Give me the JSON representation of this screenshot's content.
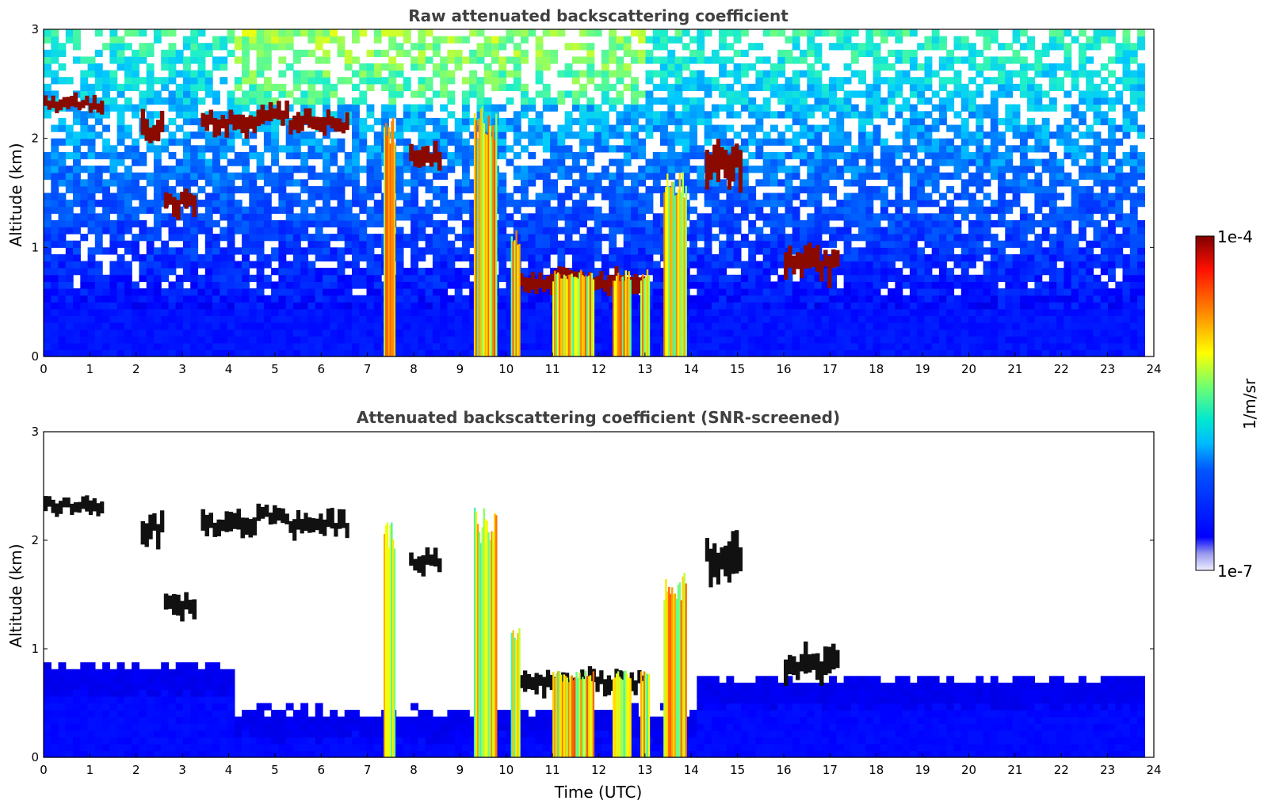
{
  "chart_data": [
    {
      "type": "heatmap",
      "title": "Raw attenuated backscattering coefficient",
      "ylabel": "Altitude (km)",
      "xlabel": "",
      "xlim": [
        0,
        24
      ],
      "ylim": [
        0,
        3
      ],
      "xticks": [
        "0",
        "1",
        "2",
        "3",
        "4",
        "5",
        "6",
        "7",
        "8",
        "9",
        "10",
        "11",
        "12",
        "13",
        "14",
        "15",
        "16",
        "17",
        "18",
        "19",
        "20",
        "21",
        "22",
        "23",
        "24"
      ],
      "yticks": [
        "0",
        "1",
        "2",
        "3"
      ],
      "data_extent_hours": 23.8,
      "colorscale": "jet",
      "color_min": "1e-7",
      "color_max": "1e-4",
      "features": {
        "cloud_layers": [
          {
            "t0": 0.0,
            "t1": 1.3,
            "z": 2.32,
            "thick": 0.15
          },
          {
            "t0": 2.1,
            "t1": 2.6,
            "z": 2.1,
            "thick": 0.25
          },
          {
            "t0": 2.6,
            "t1": 3.3,
            "z": 1.4,
            "thick": 0.2
          },
          {
            "t0": 3.4,
            "t1": 4.6,
            "z": 2.15,
            "thick": 0.2
          },
          {
            "t0": 4.6,
            "t1": 5.3,
            "z": 2.23,
            "thick": 0.18
          },
          {
            "t0": 5.3,
            "t1": 6.6,
            "z": 2.15,
            "thick": 0.2
          },
          {
            "t0": 7.9,
            "t1": 8.6,
            "z": 1.82,
            "thick": 0.2
          },
          {
            "t0": 10.2,
            "t1": 13.0,
            "z": 0.7,
            "thick": 0.2
          },
          {
            "t0": 14.3,
            "t1": 15.1,
            "z": 1.8,
            "thick": 0.4
          },
          {
            "t0": 16.0,
            "t1": 17.2,
            "z": 0.85,
            "thick": 0.3
          }
        ],
        "precip_columns": [
          {
            "t0": 7.35,
            "t1": 7.6,
            "top": 2.2
          },
          {
            "t0": 9.3,
            "t1": 9.8,
            "top": 2.3
          },
          {
            "t0": 10.1,
            "t1": 10.3,
            "top": 1.2
          },
          {
            "t0": 11.0,
            "t1": 11.9,
            "top": 0.8
          },
          {
            "t0": 12.3,
            "t1": 12.7,
            "top": 0.8
          },
          {
            "t0": 12.9,
            "t1": 13.1,
            "top": 0.8
          },
          {
            "t0": 13.4,
            "t1": 13.9,
            "top": 1.7
          }
        ]
      }
    },
    {
      "type": "heatmap",
      "title": "Attenuated backscattering coefficient (SNR-screened)",
      "ylabel": "Altitude (km)",
      "xlabel": "Time (UTC)",
      "xlim": [
        0,
        24
      ],
      "ylim": [
        0,
        3
      ],
      "xticks": [
        "0",
        "1",
        "2",
        "3",
        "4",
        "5",
        "6",
        "7",
        "8",
        "9",
        "10",
        "11",
        "12",
        "13",
        "14",
        "15",
        "16",
        "17",
        "18",
        "19",
        "20",
        "21",
        "22",
        "23",
        "24"
      ],
      "yticks": [
        "0",
        "1",
        "2",
        "3"
      ],
      "data_extent_hours": 23.8,
      "colorscale": "jet",
      "color_min": "1e-7",
      "color_max": "1e-4"
    }
  ],
  "colorbar": {
    "label": "1/m/sr",
    "max_label": "1e-4",
    "min_label": "1e-7"
  }
}
